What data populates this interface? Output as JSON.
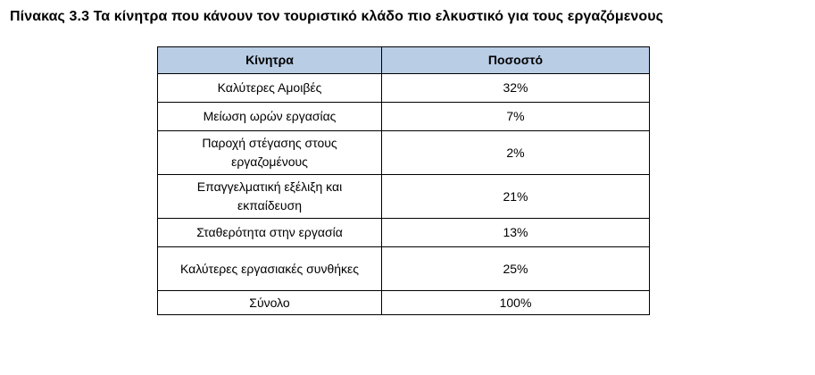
{
  "caption": "Πίνακας 3.3 Τα κίνητρα που κάνουν τον τουριστικό κλάδο πιο ελκυστικό για τους εργαζόμενους",
  "table": {
    "headers": [
      "Κίνητρα",
      "Ποσοστό"
    ],
    "rows": [
      {
        "label": "Καλύτερες Αμοιβές",
        "value": "32%"
      },
      {
        "label": "Μείωση ωρών εργασίας",
        "value": "7%"
      },
      {
        "label": "Παροχή στέγασης στους εργαζομένους",
        "value": "2%"
      },
      {
        "label": "Επαγγελματική εξέλιξη και εκπαίδευση",
        "value": "21%"
      },
      {
        "label": "Σταθερότητα στην εργασία",
        "value": "13%"
      },
      {
        "label": "Καλύτερες εργασιακές συνθήκες",
        "value": "25%"
      },
      {
        "label": "Σύνολο",
        "value": "100%"
      }
    ]
  },
  "colors": {
    "header_background": "#b9cde5",
    "border": "#000000"
  }
}
